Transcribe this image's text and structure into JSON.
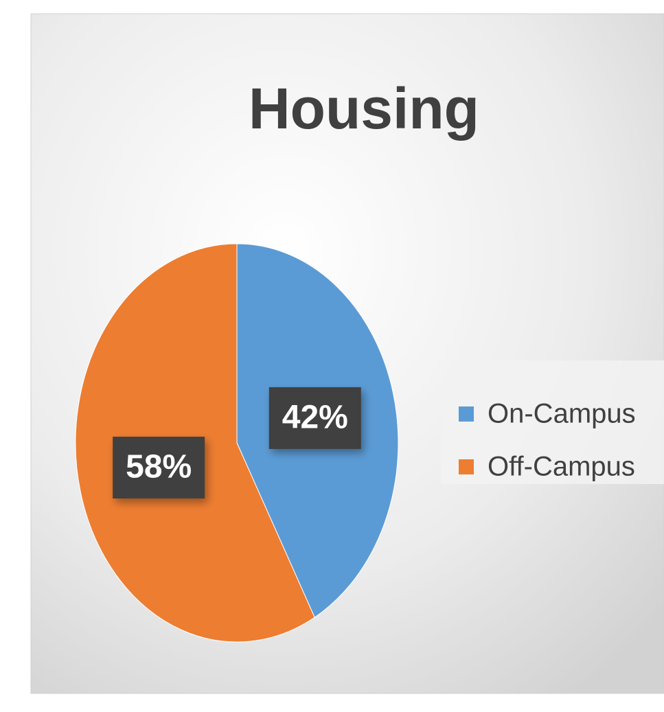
{
  "chart_data": {
    "type": "pie",
    "title": "Housing",
    "categories": [
      "On-Campus",
      "Off-Campus"
    ],
    "values": [
      42,
      58
    ],
    "value_labels": [
      "42%",
      "58%"
    ],
    "colors": [
      "#5b9bd5",
      "#ed7d31"
    ],
    "legend": "right"
  }
}
